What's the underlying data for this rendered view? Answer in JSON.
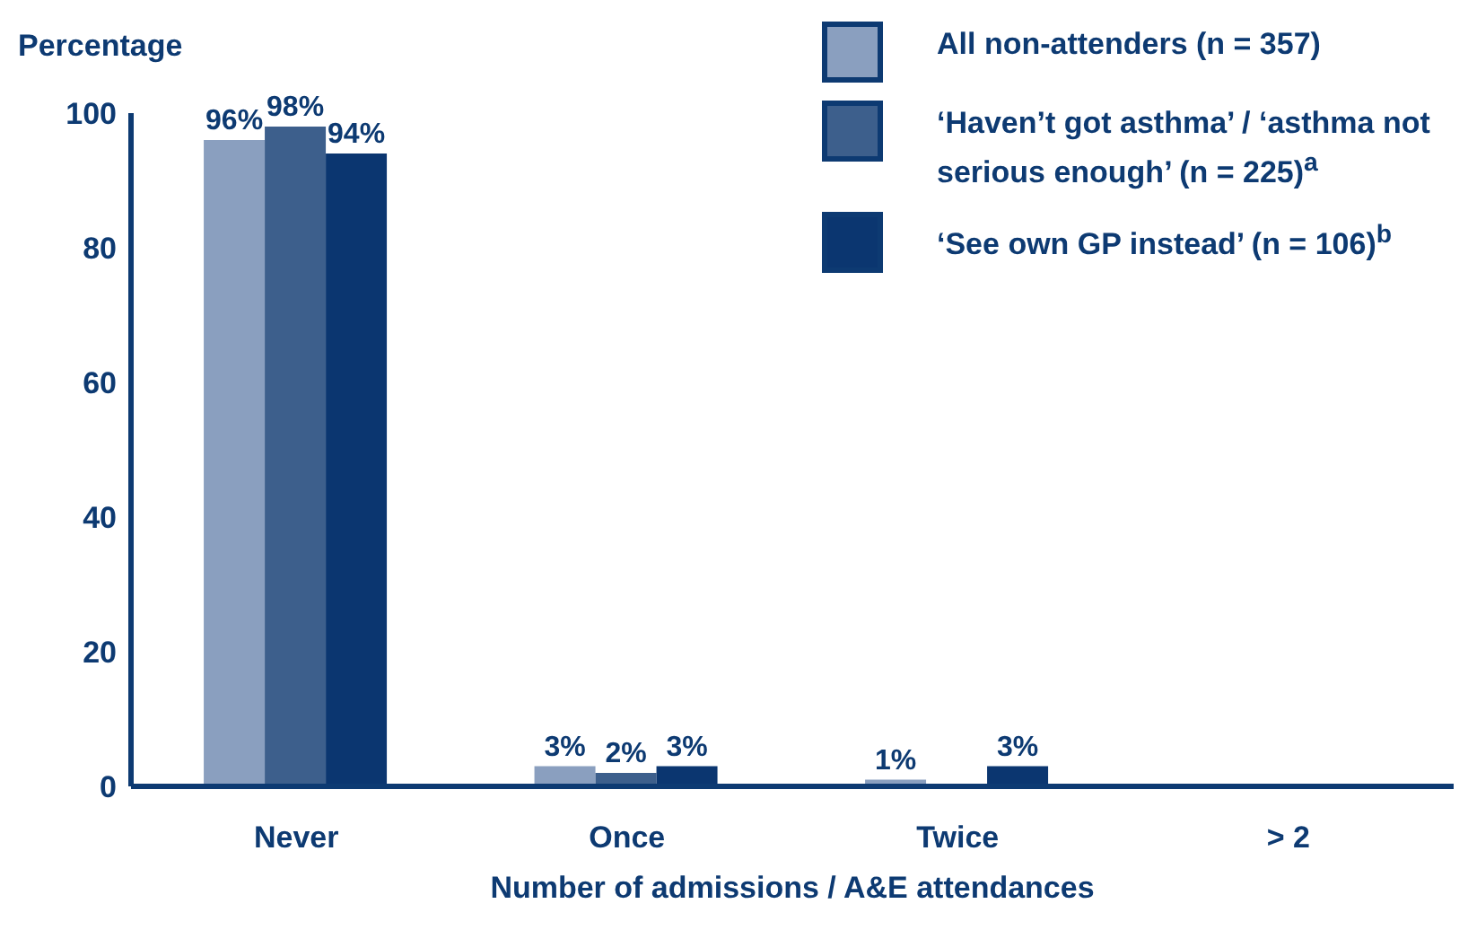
{
  "chart_data": {
    "type": "bar",
    "ylabel": "Percentage",
    "xlabel": "Number of admissions / A&E attendances",
    "categories": [
      "Never",
      "Once",
      "Twice",
      "> 2"
    ],
    "series": [
      {
        "name": "All non-attenders (n = 357)",
        "color": "#8a9fbf",
        "values": [
          96,
          3,
          1,
          null
        ],
        "value_labels": [
          "96%",
          "3%",
          "1%",
          null
        ]
      },
      {
        "name": "‘Haven’t got asthma’ / ‘asthma not serious enough’ (n = 225)$^{a}$",
        "color": "#3d5f8c",
        "values": [
          98,
          2,
          null,
          null
        ],
        "value_labels": [
          "98%",
          "2%",
          null,
          null
        ]
      },
      {
        "name": "‘See own GP instead’ (n = 106)$^{b}$",
        "color": "#0b3670",
        "values": [
          94,
          3,
          3,
          null
        ],
        "value_labels": [
          "94%",
          "3%",
          "3%",
          null
        ]
      }
    ],
    "ylim": [
      0,
      100
    ],
    "yticks": [
      0,
      20,
      40,
      60,
      80,
      100
    ],
    "grid": false,
    "legend": "top right"
  }
}
